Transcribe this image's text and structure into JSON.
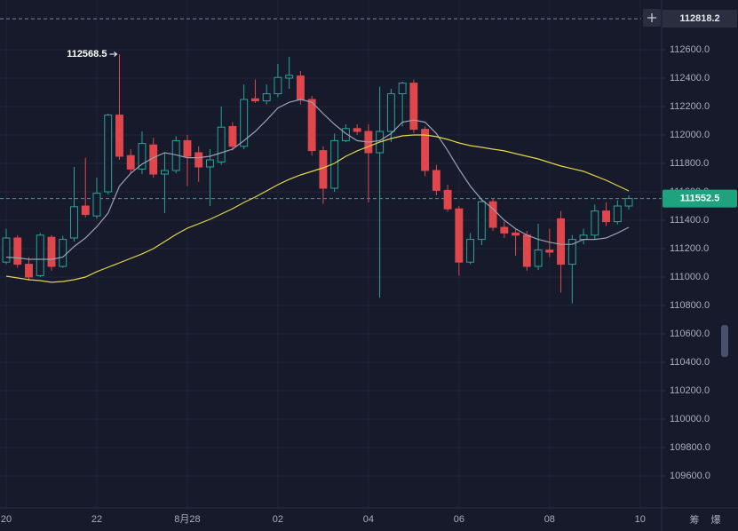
{
  "chart_data": {
    "type": "candlestick",
    "up_color": "#26a69a",
    "down_color": "#e0474c",
    "open": [
      111105,
      111275,
      111090,
      111010,
      111280,
      111075,
      111275,
      111500,
      111430,
      111600,
      112140,
      111855,
      111760,
      111930,
      111725,
      111750,
      111960,
      111875,
      111775,
      111810,
      112060,
      111920,
      112255,
      112240,
      112290,
      112400,
      112415,
      112250,
      111890,
      111625,
      111960,
      112045,
      112025,
      111875,
      112025,
      112290,
      112365,
      112040,
      111750,
      111610,
      111480,
      111105,
      111265,
      111530,
      111350,
      111310,
      111295,
      111075,
      111190,
      111410,
      111090,
      111265,
      111295,
      111465,
      111390,
      111500
    ],
    "high": [
      111340,
      111295,
      111140,
      111310,
      111295,
      111290,
      111775,
      111840,
      111700,
      112150,
      112568.5,
      111900,
      112025,
      111980,
      111875,
      111990,
      112000,
      111920,
      111900,
      112200,
      112090,
      112355,
      112390,
      112355,
      112500,
      112550,
      112450,
      112275,
      111920,
      112010,
      112075,
      112075,
      112075,
      112340,
      112325,
      112375,
      112390,
      112060,
      111790,
      111650,
      111500,
      111310,
      111545,
      111550,
      111390,
      111340,
      111325,
      111375,
      111340,
      111465,
      111295,
      111340,
      111510,
      111525,
      111540,
      111575
    ],
    "low": [
      111090,
      111065,
      110975,
      111000,
      111045,
      111065,
      111250,
      111420,
      111410,
      111580,
      111825,
      111725,
      111725,
      111700,
      111450,
      111730,
      111640,
      111670,
      111500,
      111790,
      111890,
      111900,
      112225,
      112215,
      112265,
      112325,
      112215,
      111855,
      111515,
      111600,
      111950,
      112000,
      111525,
      110855,
      111950,
      112060,
      112015,
      111710,
      111575,
      111460,
      111010,
      111090,
      111225,
      111325,
      111275,
      111150,
      111045,
      111050,
      111140,
      110890,
      110815,
      111230,
      111265,
      111360,
      111370,
      111475
    ],
    "close": [
      111275,
      111090,
      111000,
      111295,
      111075,
      111265,
      111495,
      111440,
      111590,
      112140,
      111850,
      111760,
      111940,
      111725,
      111750,
      111960,
      111850,
      111775,
      111825,
      112055,
      111920,
      112250,
      112240,
      112290,
      112405,
      112420,
      112250,
      111890,
      111625,
      111960,
      112045,
      112025,
      111875,
      112025,
      112290,
      112365,
      112040,
      111750,
      111610,
      111480,
      111105,
      111265,
      111530,
      111350,
      111310,
      111295,
      111075,
      111190,
      111175,
      111090,
      111265,
      111295,
      111465,
      111390,
      111500,
      111552.5
    ],
    "lines": [
      {
        "color": "#9aa0b4",
        "values": [
          111140,
          111135,
          111125,
          111125,
          111125,
          111140,
          111215,
          111275,
          111355,
          111450,
          111640,
          111730,
          111795,
          111840,
          111875,
          111860,
          111840,
          111840,
          111850,
          111875,
          111900,
          111960,
          112025,
          112105,
          112190,
          112230,
          112250,
          112230,
          112150,
          112075,
          112010,
          111960,
          111950,
          111960,
          112010,
          112090,
          112105,
          112090,
          112010,
          111890,
          111760,
          111640,
          111545,
          111480,
          111400,
          111340,
          111295,
          111265,
          111245,
          111230,
          111230,
          111265,
          111265,
          111275,
          111310,
          111350
        ]
      },
      {
        "color": "#e3d54a",
        "values": [
          111006,
          110994,
          110981,
          110975,
          110963,
          110969,
          110981,
          111000,
          111038,
          111069,
          111100,
          111131,
          111163,
          111200,
          111250,
          111300,
          111344,
          111375,
          111406,
          111444,
          111481,
          111525,
          111563,
          111606,
          111650,
          111688,
          111719,
          111744,
          111769,
          111800,
          111850,
          111888,
          111919,
          111950,
          111975,
          111994,
          112000,
          112000,
          111988,
          111969,
          111944,
          111925,
          111913,
          111900,
          111888,
          111869,
          111850,
          111831,
          111806,
          111781,
          111763,
          111744,
          111713,
          111681,
          111644,
          111606
        ]
      }
    ],
    "reference_price": 112818.2,
    "ylim": [
      109375,
      112950
    ],
    "yticks": [
      {
        "value": 109600,
        "label": "109600.0"
      },
      {
        "value": 109800,
        "label": "109800.0"
      },
      {
        "value": 110000,
        "label": "110000.0"
      },
      {
        "value": 110200,
        "label": "110200.0"
      },
      {
        "value": 110400,
        "label": "110400.0"
      },
      {
        "value": 110600,
        "label": "110600.0"
      },
      {
        "value": 110800,
        "label": "110800.0"
      },
      {
        "value": 111000,
        "label": "111000.0"
      },
      {
        "value": 111200,
        "label": "111200.0"
      },
      {
        "value": 111400,
        "label": "111400.0"
      },
      {
        "value": 111600,
        "label": "111600.0"
      },
      {
        "value": 111800,
        "label": "111800.0"
      },
      {
        "value": 112000,
        "label": "112000.0"
      },
      {
        "value": 112200,
        "label": "112200.0"
      },
      {
        "value": 112400,
        "label": "112400.0"
      },
      {
        "value": 112600,
        "label": "112600.0"
      }
    ],
    "xlim": [
      -0.55,
      57.9
    ],
    "xticks": [
      {
        "value": 0,
        "label": "20"
      },
      {
        "value": 8,
        "label": "22"
      },
      {
        "value": 16,
        "label": "8月28"
      },
      {
        "value": 24,
        "label": "02"
      },
      {
        "value": 32,
        "label": "04"
      },
      {
        "value": 40,
        "label": "06"
      },
      {
        "value": 48,
        "label": "08"
      },
      {
        "value": 56,
        "label": "10"
      }
    ],
    "grid": true
  },
  "toolbar_labels": [
    "筹",
    "爆"
  ]
}
